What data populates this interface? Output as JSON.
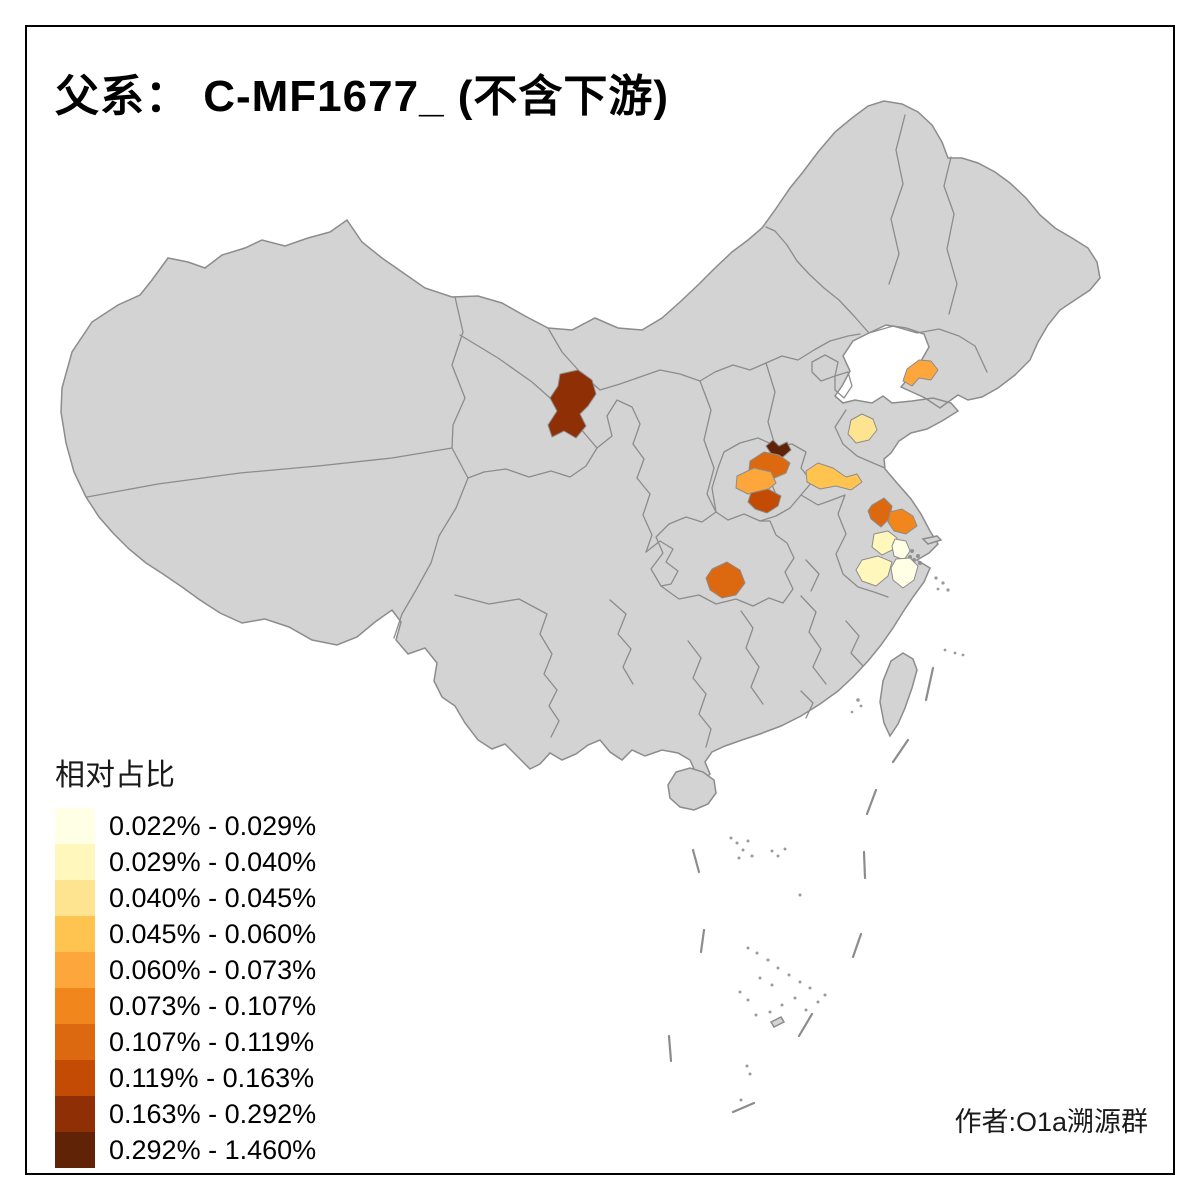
{
  "title": "父系： C-MF1677_ (不含下游)",
  "attribution": "作者:O1a溯源群",
  "legend": {
    "title": "相对占比",
    "classes": [
      {
        "range": "0.022% - 0.029%",
        "color": "#FFFFE5"
      },
      {
        "range": "0.029% - 0.040%",
        "color": "#FFF7BC"
      },
      {
        "range": "0.040% - 0.045%",
        "color": "#FEE391"
      },
      {
        "range": "0.045% - 0.060%",
        "color": "#FEC44F"
      },
      {
        "range": "0.060% - 0.073%",
        "color": "#FDA63B"
      },
      {
        "range": "0.073% - 0.107%",
        "color": "#F1861D"
      },
      {
        "range": "0.107% - 0.119%",
        "color": "#DC6810"
      },
      {
        "range": "0.119% - 0.163%",
        "color": "#C34B03"
      },
      {
        "range": "0.163% - 0.292%",
        "color": "#8E2F05"
      },
      {
        "range": "0.292% - 1.460%",
        "color": "#602306"
      }
    ]
  },
  "map": {
    "background": "#FFFFFF",
    "base_fill": "#D3D3D3",
    "border_color": "#8C8C8C",
    "frame_color": "#000000",
    "highlighted_regions": [
      {
        "id": "gansu-central",
        "class_index": 9,
        "range": "0.163% - 0.292%"
      },
      {
        "id": "henan-north-small",
        "class_index": 10,
        "range": "0.292% - 1.460%"
      },
      {
        "id": "henan-center",
        "class_index": 7,
        "range": "0.107% - 0.119%"
      },
      {
        "id": "henan-west",
        "class_index": 5,
        "range": "0.060% - 0.073%"
      },
      {
        "id": "henan-south",
        "class_index": 8,
        "range": "0.119% - 0.163%"
      },
      {
        "id": "jiangsu-northwest",
        "class_index": 4,
        "range": "0.045% - 0.060%"
      },
      {
        "id": "shandong-central",
        "class_index": 3,
        "range": "0.040% - 0.045%"
      },
      {
        "id": "liaoning-peninsula",
        "class_index": 5,
        "range": "0.060% - 0.073%"
      },
      {
        "id": "jiangsu-mid-west",
        "class_index": 7,
        "range": "0.107% - 0.119%"
      },
      {
        "id": "jiangsu-mid-east",
        "class_index": 6,
        "range": "0.073% - 0.107%"
      },
      {
        "id": "jiangsu-south-a",
        "class_index": 2,
        "range": "0.029% - 0.040%"
      },
      {
        "id": "jiangsu-south-b",
        "class_index": 1,
        "range": "0.022% - 0.029%"
      },
      {
        "id": "zhejiang-north",
        "class_index": 2,
        "range": "0.029% - 0.040%"
      },
      {
        "id": "jiangsu-southeast",
        "class_index": 1,
        "range": "0.022% - 0.029%"
      },
      {
        "id": "hubei-west",
        "class_index": 7,
        "range": "0.107% - 0.119%"
      }
    ]
  }
}
